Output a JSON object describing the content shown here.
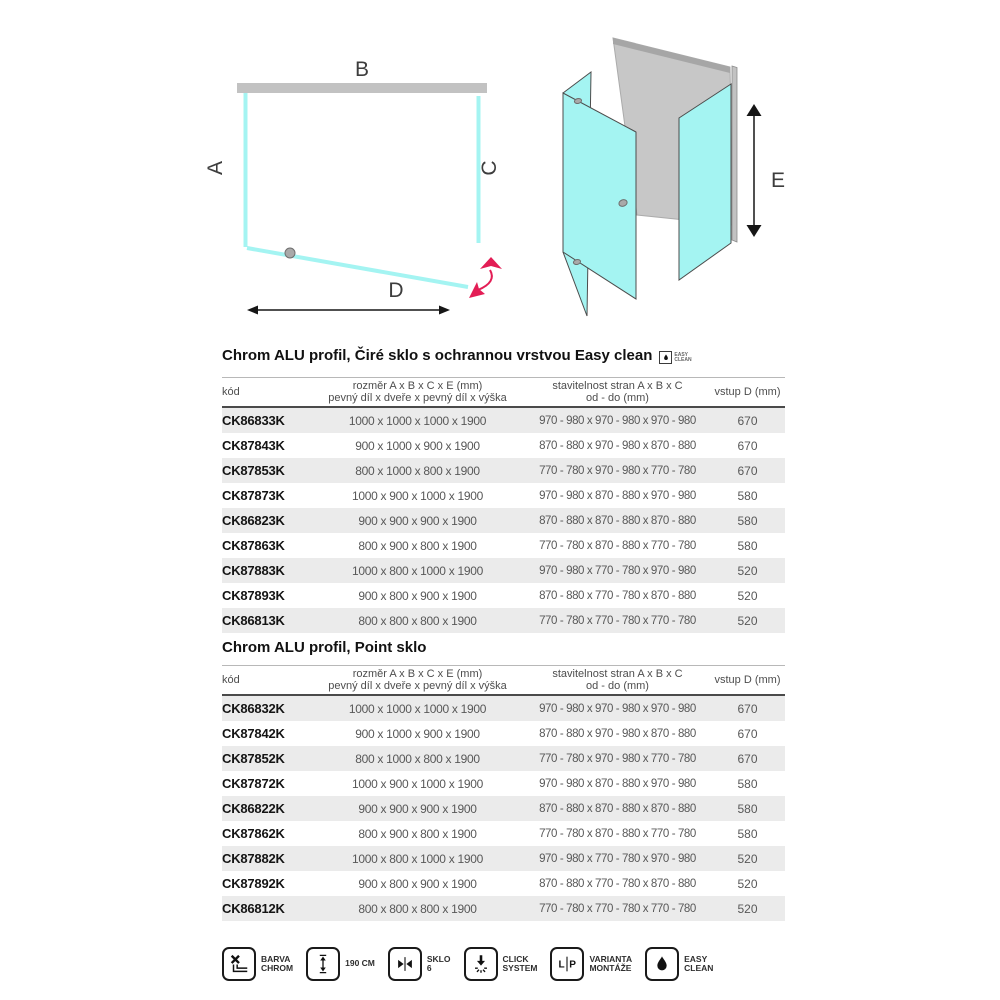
{
  "diagram_2d": {
    "label_a": "A",
    "label_b": "B",
    "label_c": "C",
    "label_d": "D"
  },
  "diagram_3d": {
    "label_e": "E"
  },
  "columns": {
    "code": "kód",
    "size_line1": "rozměr A x B x C x E (mm)",
    "size_line2": "pevný díl x dveře x pevný díl x výška",
    "adjust_line1": "stavitelnost stran A x B x C",
    "adjust_line2": "od - do (mm)",
    "entry": "vstup D (mm)"
  },
  "easy_clean_badge": {
    "icon": "water-drop-icon",
    "text_line1": "EASY",
    "text_line2": "CLEAN"
  },
  "table1": {
    "heading": "Chrom ALU profil, Čiré sklo s ochrannou vrstvou Easy clean",
    "rows": [
      [
        "CK86833K",
        "1000 x 1000 x 1000 x 1900",
        "970 - 980 x 970 - 980 x 970 - 980",
        "670"
      ],
      [
        "CK87843K",
        "900 x 1000 x 900 x 1900",
        "870 - 880 x 970 - 980 x 870 - 880",
        "670"
      ],
      [
        "CK87853K",
        "800 x 1000 x 800 x 1900",
        "770 - 780 x 970 - 980 x 770 - 780",
        "670"
      ],
      [
        "CK87873K",
        "1000 x 900 x 1000 x 1900",
        "970 - 980 x 870 - 880 x 970 - 980",
        "580"
      ],
      [
        "CK86823K",
        "900 x 900 x 900 x 1900",
        "870 - 880 x 870 - 880 x 870 - 880",
        "580"
      ],
      [
        "CK87863K",
        "800 x 900 x 800 x 1900",
        "770 - 780 x 870 - 880 x 770 - 780",
        "580"
      ],
      [
        "CK87883K",
        "1000 x 800 x 1000 x 1900",
        "970 - 980 x 770 - 780 x 970 - 980",
        "520"
      ],
      [
        "CK87893K",
        "900 x 800 x 900 x 1900",
        "870 - 880 x 770 - 780 x 870 - 880",
        "520"
      ],
      [
        "CK86813K",
        "800 x 800 x 800 x 1900",
        "770 - 780 x 770 - 780 x 770 - 780",
        "520"
      ]
    ]
  },
  "table2": {
    "heading": "Chrom ALU profil, Point sklo",
    "rows": [
      [
        "CK86832K",
        "1000 x 1000 x 1000 x 1900",
        "970 - 980 x 970 - 980 x 970 - 980",
        "670"
      ],
      [
        "CK87842K",
        "900 x 1000 x 900 x 1900",
        "870 - 880 x 970 - 980 x 870 - 880",
        "670"
      ],
      [
        "CK87852K",
        "800 x 1000 x 800 x 1900",
        "770 - 780 x 970 - 980 x 770 - 780",
        "670"
      ],
      [
        "CK87872K",
        "1000 x 900 x 1000 x 1900",
        "970 - 980 x 870 - 880 x 970 - 980",
        "580"
      ],
      [
        "CK86822K",
        "900 x 900 x 900 x 1900",
        "870 - 880 x 870 - 880 x 870 - 880",
        "580"
      ],
      [
        "CK87862K",
        "800 x 900 x 800 x 1900",
        "770 - 780 x 870 - 880 x 770 - 780",
        "580"
      ],
      [
        "CK87882K",
        "1000 x 800 x 1000 x 1900",
        "970 - 980 x 770 - 780 x 970 - 980",
        "520"
      ],
      [
        "CK87892K",
        "900 x 800 x 900 x 1900",
        "870 - 880 x 770 - 780 x 870 - 880",
        "520"
      ],
      [
        "CK86812K",
        "800 x 800 x 800 x 1900",
        "770 - 780 x 770 - 780 x 770 - 780",
        "520"
      ]
    ]
  },
  "footer": {
    "items": [
      {
        "icon": "chrome-profile-icon",
        "lines": [
          "BARVA",
          "CHROM"
        ]
      },
      {
        "icon": "height-range-icon",
        "lines": [
          "190 CM"
        ]
      },
      {
        "icon": "glass-thickness-icon",
        "lines": [
          "SKLO",
          "6"
        ]
      },
      {
        "icon": "click-system-icon",
        "lines": [
          "CLICK",
          "SYSTEM"
        ]
      },
      {
        "icon": "left-right-variant-icon",
        "lines": [
          "VARIANTA",
          "MONTÁŽE"
        ]
      },
      {
        "icon": "easy-clean-icon",
        "lines": [
          "EASY",
          "CLEAN"
        ]
      }
    ]
  },
  "colors": {
    "glass_cyan": "#a4f4f2",
    "accent_pink": "#e31d55",
    "wall_gray": "#c7c7c7",
    "row_stripe": "#ebebeb"
  }
}
